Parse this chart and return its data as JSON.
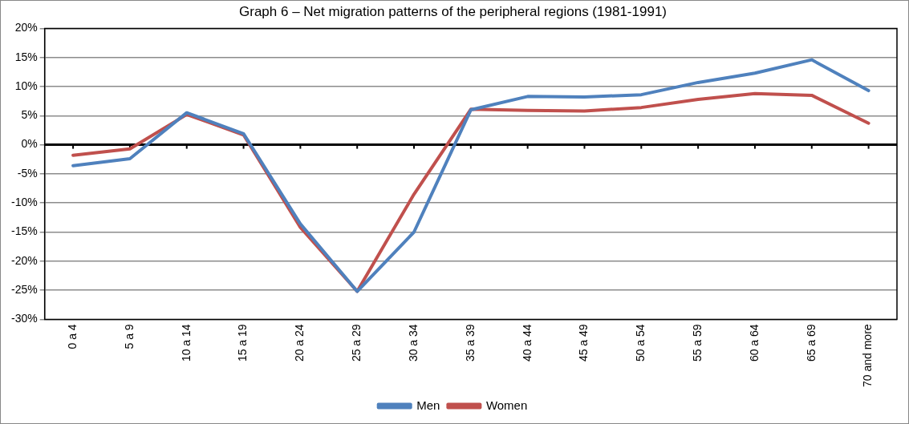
{
  "chart_data": {
    "type": "line",
    "title": "Graph 6 – Net migration patterns of the peripheral regions (1981-1991)",
    "categories": [
      "0 a 4",
      "5 a 9",
      "10 a 14",
      "15 a 19",
      "20 a 24",
      "25 a 29",
      "30 a 34",
      "35 a 39",
      "40 a 44",
      "45 a 49",
      "50 a 54",
      "55 a 59",
      "60 a 64",
      "65 a 69",
      "70 and more"
    ],
    "series": [
      {
        "name": "Men",
        "color": "#4f81bd",
        "values": [
          -3.6,
          -2.4,
          5.5,
          1.9,
          -13.6,
          -25.2,
          -15,
          6.0,
          8.3,
          8.2,
          8.6,
          10.7,
          12.3,
          14.6,
          9.3
        ]
      },
      {
        "name": "Women",
        "color": "#c0504d",
        "values": [
          -1.8,
          -0.7,
          5.2,
          1.7,
          -14.2,
          -25.2,
          -8.5,
          6.1,
          5.9,
          5.8,
          6.4,
          7.8,
          8.8,
          8.5,
          3.7
        ]
      }
    ],
    "ylim": [
      -30,
      20
    ],
    "yticks": [
      {
        "value": -30,
        "label": "-30%"
      },
      {
        "value": -25,
        "label": "-25%"
      },
      {
        "value": -20,
        "label": "-20%"
      },
      {
        "value": -15,
        "label": "-15%"
      },
      {
        "value": -10,
        "label": "-10%"
      },
      {
        "value": -5,
        "label": "-5%"
      },
      {
        "value": 0,
        "label": "0%"
      },
      {
        "value": 5,
        "label": "5%"
      },
      {
        "value": 10,
        "label": "10%"
      },
      {
        "value": 15,
        "label": "15%"
      },
      {
        "value": 20,
        "label": "20%"
      }
    ],
    "grid": "y",
    "legend": "bottom",
    "marker": "none",
    "line_style": "solid"
  }
}
